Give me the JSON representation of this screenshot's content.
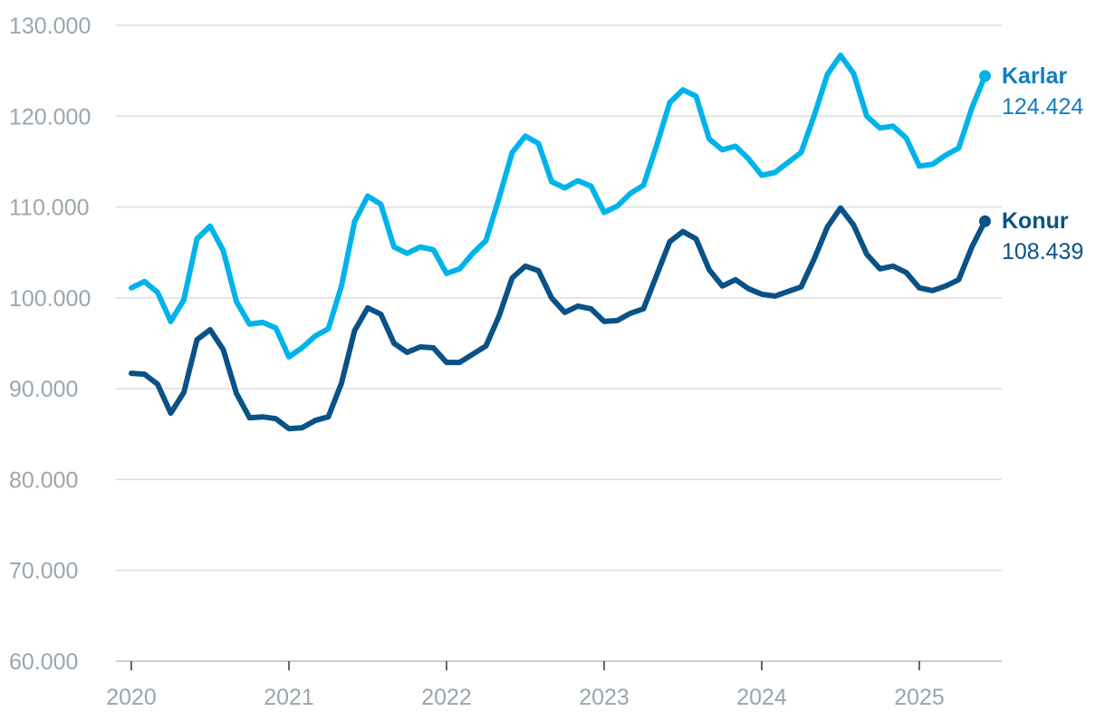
{
  "chart_data": {
    "type": "line",
    "title": "",
    "xlabel": "",
    "ylabel": "",
    "ylim": [
      60000,
      130000
    ],
    "xlim": [
      2020.0,
      2025.5
    ],
    "y_ticks": [
      60000,
      70000,
      80000,
      90000,
      100000,
      110000,
      120000,
      130000
    ],
    "y_tick_labels": [
      "60.000",
      "70.000",
      "80.000",
      "90.000",
      "100.000",
      "110.000",
      "120.000",
      "130.000"
    ],
    "x_ticks": [
      2020,
      2021,
      2022,
      2023,
      2024,
      2025
    ],
    "x_tick_labels": [
      "2020",
      "2021",
      "2022",
      "2023",
      "2024",
      "2025"
    ],
    "grid": true,
    "series": [
      {
        "name": "Karlar",
        "color": "#00b3ea",
        "label_color": "#0e7fbf",
        "last_value_label": "124.424",
        "start": 2020.0,
        "step": 0.0833333,
        "values": [
          101100,
          101800,
          100600,
          97400,
          99800,
          106500,
          107900,
          105200,
          99600,
          97100,
          97300,
          96700,
          93500,
          94500,
          95800,
          96600,
          101300,
          108400,
          111200,
          110300,
          105600,
          104900,
          105600,
          105300,
          102700,
          103200,
          104900,
          106300,
          111000,
          116000,
          117800,
          117000,
          112800,
          112100,
          112900,
          112300,
          109400,
          110100,
          111500,
          112400,
          116800,
          121500,
          122900,
          122200,
          117500,
          116300,
          116700,
          115300,
          113500,
          113800,
          114900,
          116000,
          120100,
          124600,
          126700,
          124700,
          120000,
          118700,
          118900,
          117600,
          114500,
          114700,
          115700,
          116500,
          120900,
          124424
        ]
      },
      {
        "name": "Konur",
        "color": "#0a5286",
        "label_color": "#0a5286",
        "last_value_label": "108.439",
        "start": 2020.0,
        "step": 0.0833333,
        "values": [
          91700,
          91600,
          90500,
          87300,
          89600,
          95400,
          96500,
          94300,
          89500,
          86800,
          86900,
          86700,
          85600,
          85700,
          86500,
          86900,
          90600,
          96400,
          98900,
          98200,
          95000,
          94000,
          94600,
          94500,
          92900,
          92900,
          93800,
          94700,
          98000,
          102200,
          103500,
          103000,
          100000,
          98400,
          99100,
          98800,
          97400,
          97500,
          98300,
          98800,
          102500,
          106200,
          107300,
          106500,
          103100,
          101300,
          102000,
          101000,
          100400,
          100200,
          100700,
          101200,
          104300,
          107800,
          109900,
          108000,
          104800,
          103200,
          103500,
          102800,
          101100,
          100800,
          101300,
          102000,
          105600,
          108439
        ]
      }
    ]
  }
}
